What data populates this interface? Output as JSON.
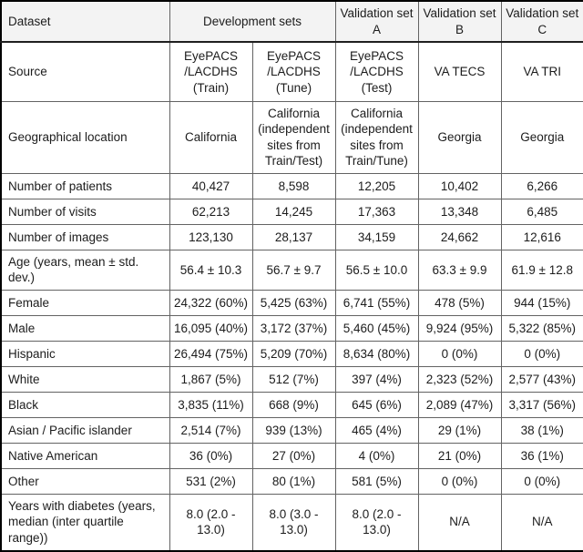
{
  "table": {
    "header": {
      "dataset": "Dataset",
      "development": "Development sets",
      "val_a": "Validation set A",
      "val_b": "Validation set B",
      "val_c": "Validation set C"
    },
    "rows": [
      {
        "label": "Source",
        "values": [
          "EyePACS /LACDHS (Train)",
          "EyePACS /LACDHS (Tune)",
          "EyePACS /LACDHS (Test)",
          "VA TECS",
          "VA TRI"
        ]
      },
      {
        "label": "Geographical location",
        "values": [
          "California",
          "California (independent sites from Train/Test)",
          "California (independent sites from Train/Tune)",
          "Georgia",
          "Georgia"
        ]
      },
      {
        "label": "Number of patients",
        "values": [
          "40,427",
          "8,598",
          "12,205",
          "10,402",
          "6,266"
        ]
      },
      {
        "label": "Number of visits",
        "values": [
          "62,213",
          "14,245",
          "17,363",
          "13,348",
          "6,485"
        ]
      },
      {
        "label": "Number of images",
        "values": [
          "123,130",
          "28,137",
          "34,159",
          "24,662",
          "12,616"
        ]
      },
      {
        "label": "Age (years, mean ± std. dev.)",
        "values": [
          "56.4 ± 10.3",
          "56.7 ± 9.7",
          "56.5 ± 10.0",
          "63.3 ± 9.9",
          "61.9 ± 12.8"
        ]
      },
      {
        "label": "Female",
        "values": [
          "24,322 (60%)",
          "5,425 (63%)",
          "6,741 (55%)",
          "478 (5%)",
          "944 (15%)"
        ]
      },
      {
        "label": "Male",
        "values": [
          "16,095 (40%)",
          "3,172 (37%)",
          "5,460 (45%)",
          "9,924 (95%)",
          "5,322 (85%)"
        ]
      },
      {
        "label": "Hispanic",
        "values": [
          "26,494 (75%)",
          "5,209 (70%)",
          "8,634 (80%)",
          "0 (0%)",
          "0 (0%)"
        ]
      },
      {
        "label": "White",
        "values": [
          "1,867 (5%)",
          "512 (7%)",
          "397 (4%)",
          "2,323 (52%)",
          "2,577 (43%)"
        ]
      },
      {
        "label": "Black",
        "values": [
          "3,835 (11%)",
          "668 (9%)",
          "645 (6%)",
          "2,089 (47%)",
          "3,317 (56%)"
        ]
      },
      {
        "label": "Asian / Pacific islander",
        "values": [
          "2,514 (7%)",
          "939 (13%)",
          "465 (4%)",
          "29 (1%)",
          "38 (1%)"
        ]
      },
      {
        "label": "Native American",
        "values": [
          "36 (0%)",
          "27 (0%)",
          "4 (0%)",
          "21 (0%)",
          "36 (1%)"
        ]
      },
      {
        "label": "Other",
        "values": [
          "531 (2%)",
          "80 (1%)",
          "581 (5%)",
          "0 (0%)",
          "0 (0%)"
        ]
      },
      {
        "label": "Years with diabetes (years, median (inter quartile range))",
        "values": [
          "8.0 (2.0 - 13.0)",
          "8.0 (3.0 - 13.0)",
          "8.0 (2.0 - 13.0)",
          "N/A",
          "N/A"
        ]
      }
    ]
  }
}
